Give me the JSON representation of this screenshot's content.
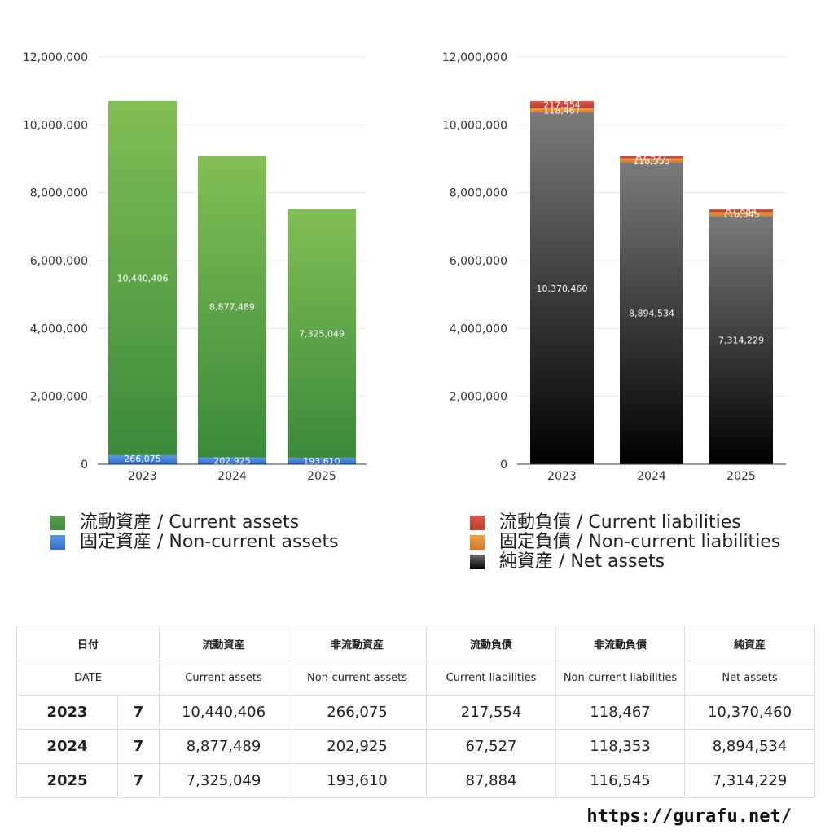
{
  "chart_data": [
    {
      "type": "bar",
      "stacked": true,
      "categories": [
        "2023",
        "2024",
        "2025"
      ],
      "ylim": [
        0,
        12000000
      ],
      "y_ticks": [
        "12,000,000",
        "10,000,000",
        "8,000,000",
        "6,000,000",
        "4,000,000",
        "2,000,000",
        "0"
      ],
      "series": [
        {
          "name": "固定資産 / Non-current assets",
          "values": [
            266075,
            202925,
            193610
          ],
          "labels": [
            "266,075",
            "202,925",
            "193,610"
          ],
          "color": "#3b7ddd"
        },
        {
          "name": "流動資産 / Current assets",
          "values": [
            10440406,
            8877489,
            7325049
          ],
          "labels": [
            "10,440,406",
            "8,877,489",
            "7,325,049"
          ],
          "color": "#4a9a45"
        }
      ]
    },
    {
      "type": "bar",
      "stacked": true,
      "categories": [
        "2023",
        "2024",
        "2025"
      ],
      "ylim": [
        0,
        12000000
      ],
      "y_ticks": [
        "12,000,000",
        "10,000,000",
        "8,000,000",
        "6,000,000",
        "4,000,000",
        "2,000,000",
        "0"
      ],
      "series": [
        {
          "name": "純資産 / Net assets",
          "values": [
            10370460,
            8894534,
            7314229
          ],
          "labels": [
            "10,370,460",
            "8,894,534",
            "7,314,229"
          ],
          "color": "#333333"
        },
        {
          "name": "固定負債 / Non-current liabilities",
          "values": [
            118467,
            118353,
            116545
          ],
          "labels": [
            "118,467",
            "118,353",
            "116,545"
          ],
          "color": "#e38a35"
        },
        {
          "name": "流動負債 / Current liabilities",
          "values": [
            217554,
            67527,
            87884
          ],
          "labels": [
            "217,554",
            "67,527",
            "87,884"
          ],
          "color": "#c9463b"
        }
      ]
    }
  ],
  "legend_left": [
    "流動資産 / Current assets",
    "固定資産 / Non-current assets"
  ],
  "legend_right": [
    "流動負債 / Current liabilities",
    "固定負債 / Non-current liabilities",
    "純資産 / Net assets"
  ],
  "table": {
    "header_jp": [
      "日付",
      "流動資産",
      "非流動資産",
      "流動負債",
      "非流動負債",
      "純資産"
    ],
    "header_en": [
      "DATE",
      "Current assets",
      "Non-current assets",
      "Current liabilities",
      "Non-current liabilities",
      "Net assets"
    ],
    "rows": [
      {
        "year": "2023",
        "month": "7",
        "ca": "10,440,406",
        "nca": "266,075",
        "cl": "217,554",
        "ncl": "118,467",
        "na": "10,370,460"
      },
      {
        "year": "2024",
        "month": "7",
        "ca": "8,877,489",
        "nca": "202,925",
        "cl": "67,527",
        "ncl": "118,353",
        "na": "8,894,534"
      },
      {
        "year": "2025",
        "month": "7",
        "ca": "7,325,049",
        "nca": "193,610",
        "cl": "87,884",
        "ncl": "116,545",
        "na": "7,314,229"
      }
    ]
  },
  "footer_url": "https://gurafu.net/"
}
